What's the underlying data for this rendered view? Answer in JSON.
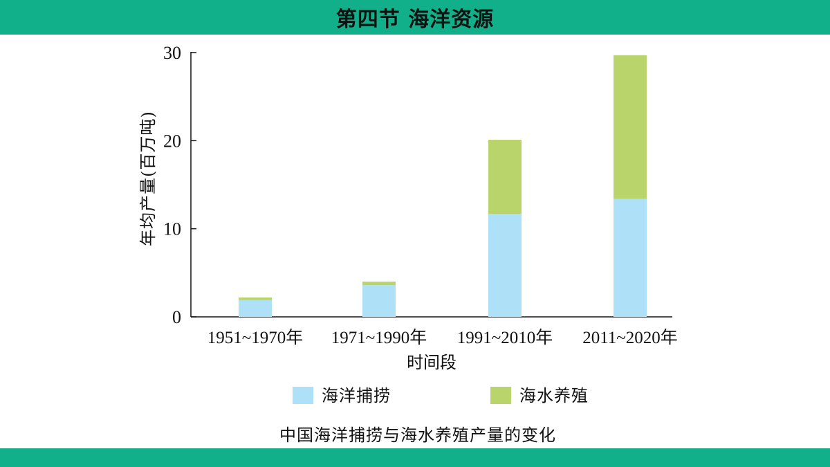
{
  "header": {
    "title": "第四节 海洋资源"
  },
  "chart_data": {
    "type": "bar",
    "stacked": true,
    "title": "中国海洋捕捞与海水养殖产量的变化",
    "xlabel": "时间段",
    "ylabel": "年均产量(百万吨)",
    "categories": [
      "1951~1970年",
      "1971~1990年",
      "1991~2010年",
      "2011~2020年"
    ],
    "ylim": [
      0,
      30
    ],
    "yticks": [
      0,
      10,
      20,
      30
    ],
    "series": [
      {
        "name": "海洋捕捞",
        "color": "#aee0f7",
        "values": [
          1.9,
          3.6,
          11.7,
          13.4
        ]
      },
      {
        "name": "海水养殖",
        "color": "#b9d46a",
        "values": [
          0.3,
          0.4,
          8.4,
          16.3
        ]
      }
    ],
    "legend_position": "bottom",
    "grid": false
  }
}
